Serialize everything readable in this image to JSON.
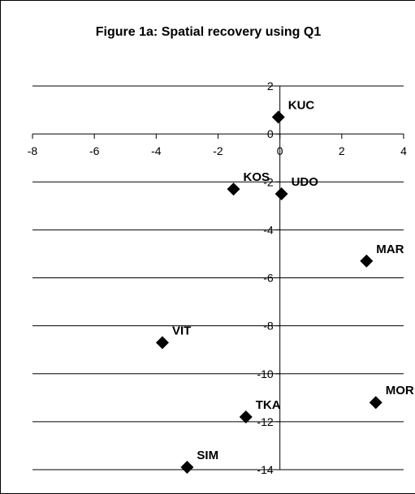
{
  "chart_data": {
    "type": "scatter",
    "title": "Figure 1a: Spatial recovery using Q1",
    "xlabel": "",
    "ylabel": "",
    "xlim": [
      -8,
      4
    ],
    "ylim": [
      -14,
      2
    ],
    "x_ticks": [
      -8,
      -6,
      -4,
      -2,
      0,
      2,
      4
    ],
    "y_ticks": [
      2,
      0,
      -2,
      -4,
      -6,
      -8,
      -10,
      -12,
      -14
    ],
    "grid": "horizontal",
    "legend": "none",
    "marker": "diamond",
    "marker_color": "#000000",
    "points": [
      {
        "label": "KUC",
        "x": -0.05,
        "y": 0.7
      },
      {
        "label": "KOS",
        "x": -1.5,
        "y": -2.3
      },
      {
        "label": "UDO",
        "x": 0.05,
        "y": -2.5
      },
      {
        "label": "MAR",
        "x": 2.8,
        "y": -5.3
      },
      {
        "label": "VIT",
        "x": -3.8,
        "y": -8.7
      },
      {
        "label": "MOR",
        "x": 3.1,
        "y": -11.2
      },
      {
        "label": "TKA",
        "x": -1.1,
        "y": -11.8
      },
      {
        "label": "SIM",
        "x": -3.0,
        "y": -13.9
      }
    ]
  }
}
